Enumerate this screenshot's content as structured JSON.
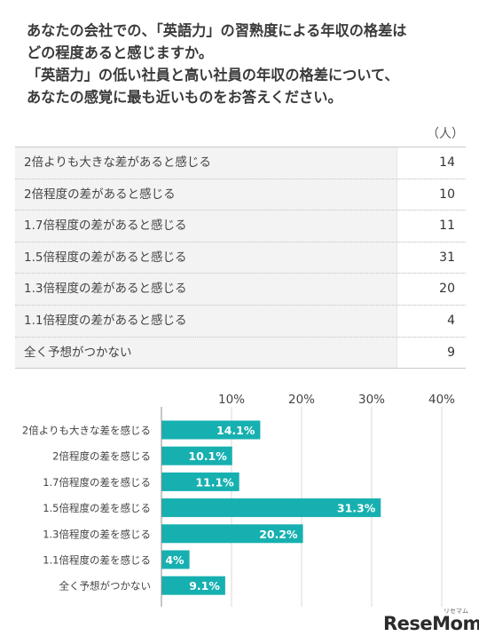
{
  "question": {
    "line1": "あなたの会社での、「英語力」の習熟度による年収の格差は",
    "line2": "どの程度あると感じますか。",
    "line3": "「英語力」の低い社員と高い社員の年収の格差について、",
    "line4": "あなたの感覚に最も近いものをお答えください。"
  },
  "table": {
    "unit": "（人）",
    "rows": [
      {
        "label": "2倍よりも大きな差があると感じる",
        "count": "14"
      },
      {
        "label": "2倍程度の差があると感じる",
        "count": "10"
      },
      {
        "label": "1.7倍程度の差があると感じる",
        "count": "11"
      },
      {
        "label": "1.5倍程度の差があると感じる",
        "count": "31"
      },
      {
        "label": "1.3倍程度の差があると感じる",
        "count": "20"
      },
      {
        "label": "1.1倍程度の差があると感じる",
        "count": "4"
      },
      {
        "label": "全く予想がつかない",
        "count": "9"
      }
    ]
  },
  "chart_data": {
    "type": "bar",
    "orientation": "horizontal",
    "categories": [
      "2倍よりも大きな差を感じる",
      "2倍程度の差を感じる",
      "1.7倍程度の差を感じる",
      "1.5倍程度の差を感じる",
      "1.3倍程度の差を感じる",
      "1.1倍程度の差を感じる",
      "全く予想がつかない"
    ],
    "values": [
      14.1,
      10.1,
      11.1,
      31.3,
      20.2,
      4,
      9.1
    ],
    "data_labels": [
      "14.1%",
      "10.1%",
      "11.1%",
      "31.3%",
      "20.2%",
      "4%",
      "9.1%"
    ],
    "xticks": [
      10,
      20,
      30,
      40
    ],
    "xtick_labels": [
      "10%",
      "20%",
      "30%",
      "40%"
    ],
    "xlim": [
      0,
      40
    ],
    "grid": true,
    "bar_color": "#17b0b0",
    "grid_color": "#d9d9d9"
  },
  "logo": {
    "text": "ReseMom",
    "kana": "リセマム"
  }
}
